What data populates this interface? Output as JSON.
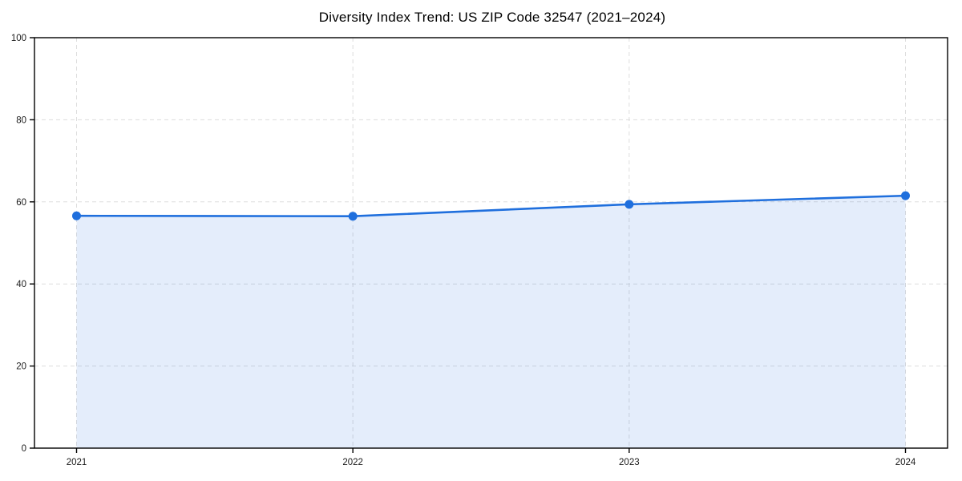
{
  "chart_data": {
    "type": "area",
    "title": "Diversity Index Trend: US ZIP Code 32547 (2021–2024)",
    "xlabel": "",
    "ylabel": "",
    "categories": [
      "2021",
      "2022",
      "2023",
      "2024"
    ],
    "series": [
      {
        "name": "Diversity Index",
        "values": [
          56.6,
          56.5,
          59.4,
          61.5
        ]
      }
    ],
    "ylim": [
      0,
      100
    ],
    "yticks": [
      0,
      20,
      40,
      60,
      80,
      100
    ],
    "grid": "dashed",
    "legend": "none",
    "colors": {
      "line": "#1f6fdd",
      "marker": "#1f6fdd",
      "area_fill": "rgba(31, 111, 221, 0.12)",
      "grid": "#dddddd",
      "axis": "#000000",
      "tick_text": "#1a1a1a",
      "background": "#ffffff"
    }
  }
}
